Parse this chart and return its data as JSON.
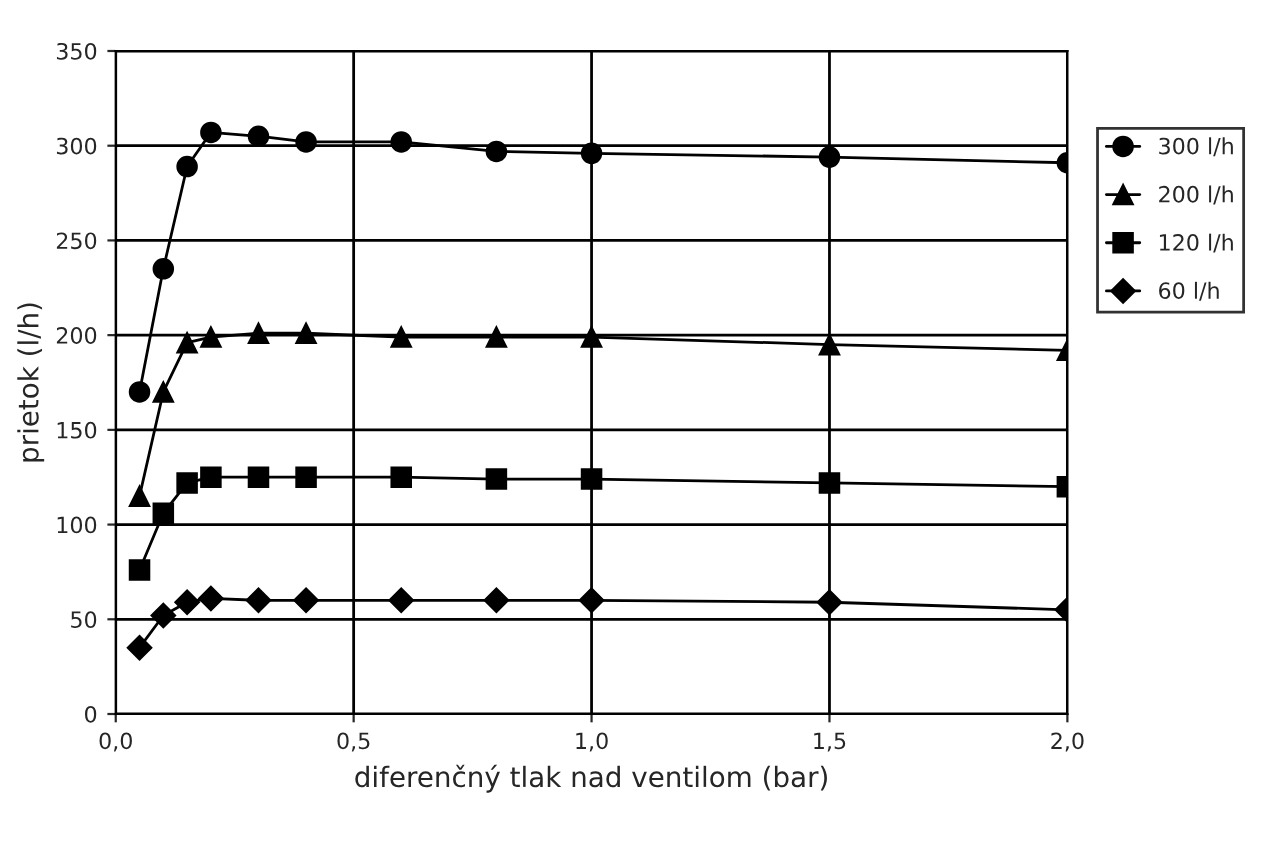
{
  "chart_data": {
    "type": "line",
    "xlabel": "diferenčný tlak nad ventilom (bar)",
    "ylabel": "prietok (l/h)",
    "x": [
      0.05,
      0.1,
      0.15,
      0.2,
      0.3,
      0.4,
      0.6,
      0.8,
      1.0,
      1.5,
      2.0
    ],
    "series": [
      {
        "name": "300 l/h",
        "color": "#000000",
        "marker": "circle",
        "values": [
          170,
          235,
          289,
          307,
          305,
          302,
          302,
          297,
          296,
          294,
          291
        ]
      },
      {
        "name": "200 l/h",
        "color": "#000000",
        "marker": "triangle",
        "values": [
          115,
          170,
          196,
          199,
          201,
          201,
          199,
          199,
          199,
          195,
          192
        ]
      },
      {
        "name": "120 l/h",
        "color": "#000000",
        "marker": "square",
        "values": [
          76,
          106,
          122,
          125,
          125,
          125,
          125,
          124,
          124,
          122,
          120
        ]
      },
      {
        "name": "60 l/h",
        "color": "#000000",
        "marker": "diamond",
        "values": [
          35,
          52,
          59,
          61,
          60,
          60,
          60,
          60,
          60,
          59,
          55
        ]
      }
    ],
    "xlim": [
      0,
      2.0
    ],
    "xticks": [
      {
        "value": 0,
        "label": "0,0"
      },
      {
        "value": 0.5,
        "label": "0,5"
      },
      {
        "value": 1.0,
        "label": "1,0"
      },
      {
        "value": 1.5,
        "label": "1,5"
      },
      {
        "value": 2.0,
        "label": "2,0"
      }
    ],
    "ylim": [
      0,
      350
    ],
    "yticks": [
      0,
      50,
      100,
      150,
      200,
      250,
      300,
      350
    ],
    "grid": true,
    "legend": "right",
    "line_style": "solid"
  }
}
